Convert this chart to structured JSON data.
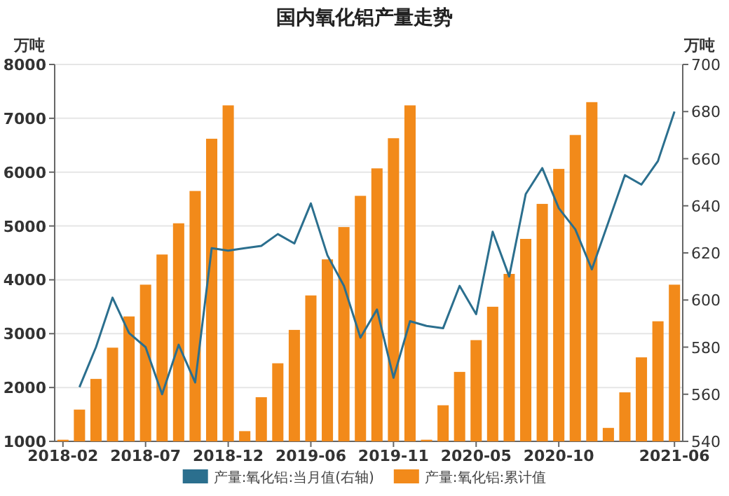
{
  "chart_data": {
    "type": "bar",
    "title": "国内氧化铝产量走势",
    "ylabel": "万吨",
    "y2label": "万吨",
    "categories": [
      "2018-02",
      null,
      null,
      null,
      null,
      "2018-07",
      null,
      null,
      null,
      null,
      "2018-12",
      null,
      null,
      null,
      null,
      "2019-06",
      null,
      null,
      null,
      null,
      "2019-11",
      null,
      null,
      null,
      null,
      "2020-05",
      null,
      null,
      null,
      null,
      "2020-10",
      null,
      null,
      null,
      null,
      null,
      null,
      "2021-06"
    ],
    "series": [
      {
        "name": "产量:氧化铝:当月值(右轴)",
        "type": "line",
        "axis": "y2",
        "color": "#2b6f8e",
        "values": [
          null,
          563,
          580,
          601,
          586,
          580,
          560,
          581,
          565,
          622,
          621,
          622,
          623,
          628,
          624,
          641,
          619,
          606,
          584,
          596,
          567,
          591,
          589,
          588,
          606,
          594,
          629,
          610,
          645,
          656,
          639,
          630,
          613,
          633,
          653,
          649,
          659,
          680
        ]
      },
      {
        "name": "产量:氧化铝:累计值",
        "color": "#f28a1a",
        "values": [
          1030,
          1590,
          2160,
          2740,
          3320,
          3910,
          4470,
          5050,
          5650,
          6620,
          7240,
          1190,
          1820,
          2450,
          3070,
          3710,
          4380,
          4980,
          5560,
          6070,
          6630,
          7240,
          1030,
          1670,
          2290,
          2880,
          3500,
          4110,
          4760,
          5410,
          6060,
          6690,
          7300,
          1250,
          1910,
          2560,
          3230,
          3910
        ]
      }
    ],
    "ylim": [
      1000,
      8000
    ],
    "yticks": [
      1000,
      2000,
      3000,
      4000,
      5000,
      6000,
      7000,
      8000
    ],
    "y2lim": [
      540,
      700
    ],
    "y2ticks": [
      540,
      560,
      580,
      600,
      620,
      640,
      660,
      680,
      700
    ],
    "grid": "y",
    "legend": "bottom"
  }
}
